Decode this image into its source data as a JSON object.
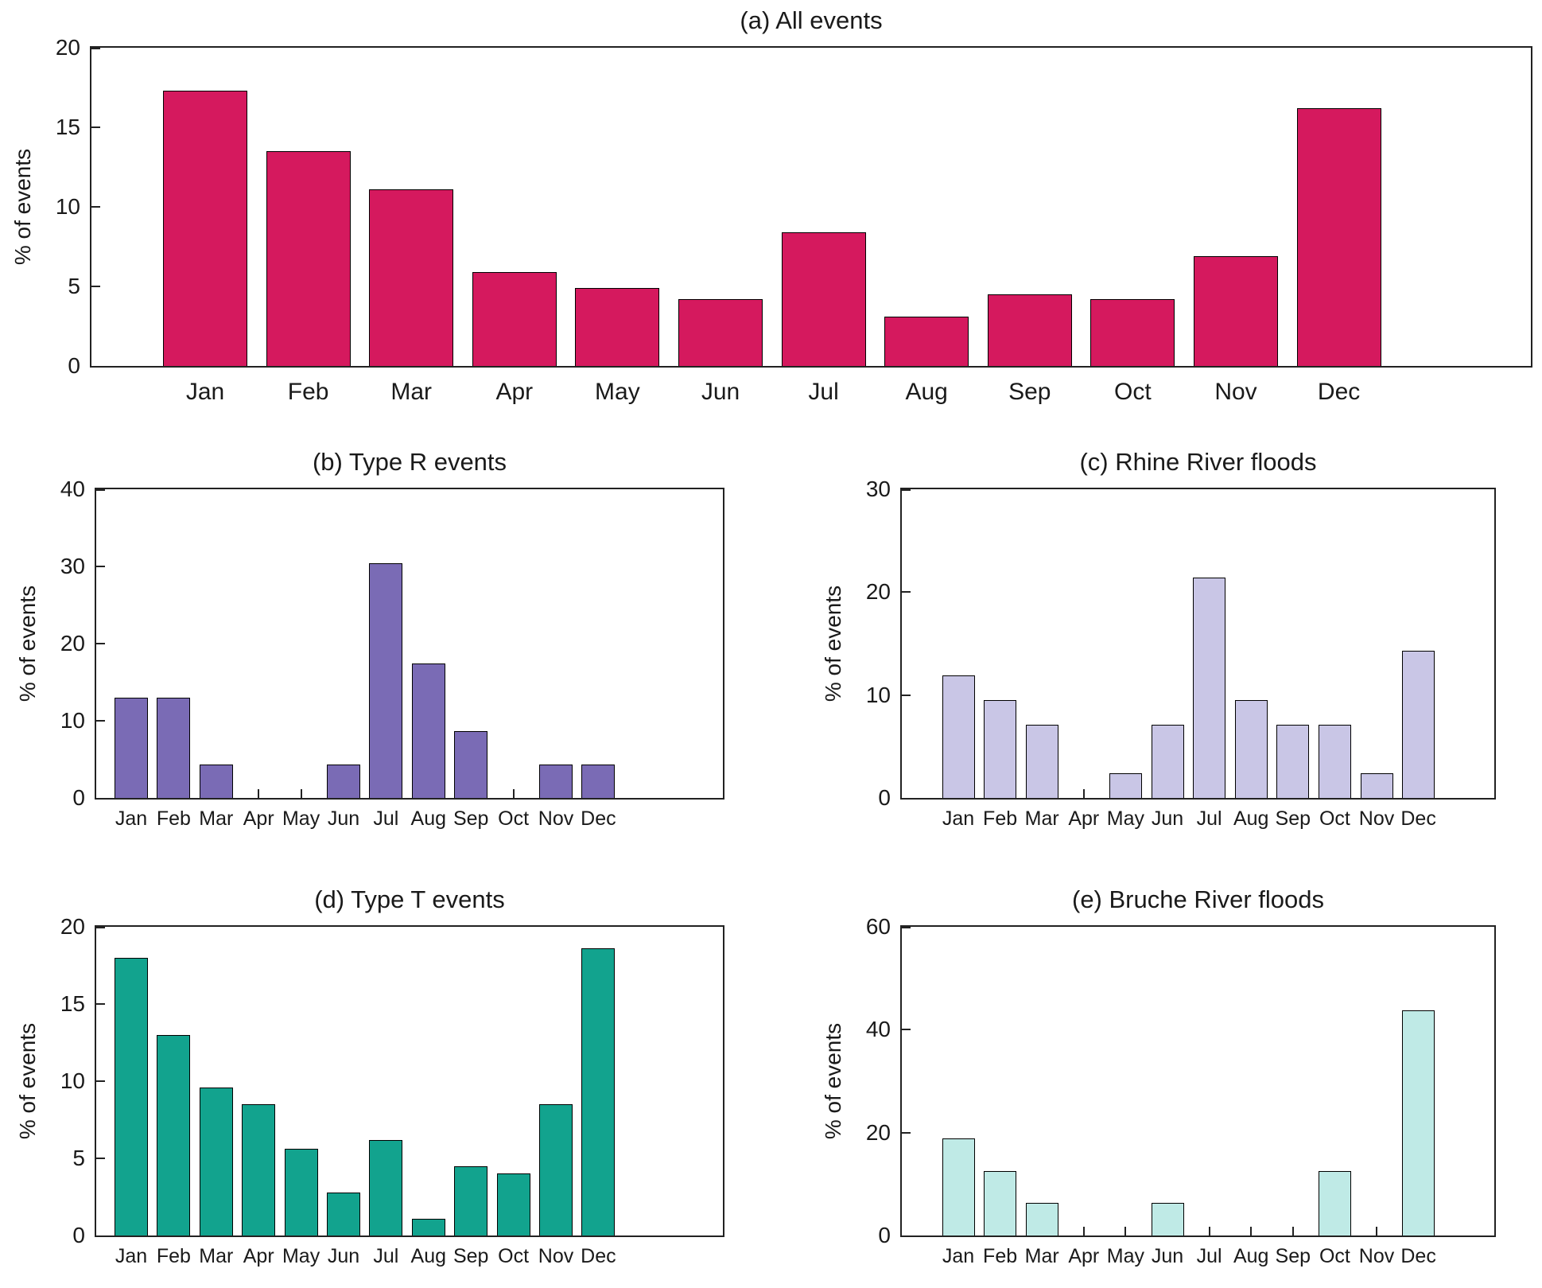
{
  "figure": {
    "background": "#ffffff",
    "axis_color": "#222222"
  },
  "chart_data": [
    {
      "id": "a",
      "type": "bar",
      "title": "(a) All events",
      "ylabel": "% of events",
      "categories": [
        "Jan",
        "Feb",
        "Mar",
        "Apr",
        "May",
        "Jun",
        "Jul",
        "Aug",
        "Sep",
        "Oct",
        "Nov",
        "Dec"
      ],
      "values": [
        17.3,
        13.5,
        11.1,
        5.9,
        4.9,
        4.2,
        8.4,
        3.1,
        4.5,
        4.2,
        6.9,
        16.2
      ],
      "ylim": [
        0,
        20
      ],
      "yticks": [
        0,
        5,
        10,
        15,
        20
      ],
      "grid": false,
      "bar_color": "#D5195E",
      "edge_color": "#000000"
    },
    {
      "id": "b",
      "type": "bar",
      "title": "(b) Type R events",
      "ylabel": "% of events",
      "categories": [
        "Jan",
        "Feb",
        "Mar",
        "Apr",
        "May",
        "Jun",
        "Jul",
        "Aug",
        "Sep",
        "Oct",
        "Nov",
        "Dec"
      ],
      "values": [
        13.0,
        13.0,
        4.3,
        0,
        0,
        4.3,
        30.4,
        17.4,
        8.7,
        0,
        4.3,
        4.3
      ],
      "ylim": [
        0,
        40
      ],
      "yticks": [
        0,
        10,
        20,
        30,
        40
      ],
      "grid": false,
      "bar_color": "#7A6BB5",
      "edge_color": "#000000"
    },
    {
      "id": "c",
      "type": "bar",
      "title": "(c) Rhine River floods",
      "ylabel": "% of events",
      "categories": [
        "Jan",
        "Feb",
        "Mar",
        "Apr",
        "May",
        "Jun",
        "Jul",
        "Aug",
        "Sep",
        "Oct",
        "Nov",
        "Dec"
      ],
      "values": [
        11.9,
        9.5,
        7.1,
        0,
        2.4,
        7.1,
        21.4,
        9.5,
        7.1,
        7.1,
        2.4,
        14.3
      ],
      "ylim": [
        0,
        30
      ],
      "yticks": [
        0,
        10,
        20,
        30
      ],
      "grid": false,
      "bar_color": "#C9C6E6",
      "edge_color": "#000000"
    },
    {
      "id": "d",
      "type": "bar",
      "title": "(d) Type T events",
      "ylabel": "% of events",
      "categories": [
        "Jan",
        "Feb",
        "Mar",
        "Apr",
        "May",
        "Jun",
        "Jul",
        "Aug",
        "Sep",
        "Oct",
        "Nov",
        "Dec"
      ],
      "values": [
        18.0,
        13.0,
        9.6,
        8.5,
        5.6,
        2.8,
        6.2,
        1.1,
        4.5,
        4.0,
        8.5,
        18.6
      ],
      "ylim": [
        0,
        20
      ],
      "yticks": [
        0,
        5,
        10,
        15,
        20
      ],
      "grid": false,
      "bar_color": "#12A38E",
      "edge_color": "#000000"
    },
    {
      "id": "e",
      "type": "bar",
      "title": "(e) Bruche River floods",
      "ylabel": "% of events",
      "categories": [
        "Jan",
        "Feb",
        "Mar",
        "Apr",
        "May",
        "Jun",
        "Jul",
        "Aug",
        "Sep",
        "Oct",
        "Nov",
        "Dec"
      ],
      "values": [
        18.8,
        12.5,
        6.3,
        0,
        0,
        6.3,
        0,
        0,
        0,
        12.5,
        0,
        43.8
      ],
      "ylim": [
        0,
        60
      ],
      "yticks": [
        0,
        20,
        40,
        60
      ],
      "grid": false,
      "bar_color": "#BFEAE6",
      "edge_color": "#000000"
    }
  ]
}
